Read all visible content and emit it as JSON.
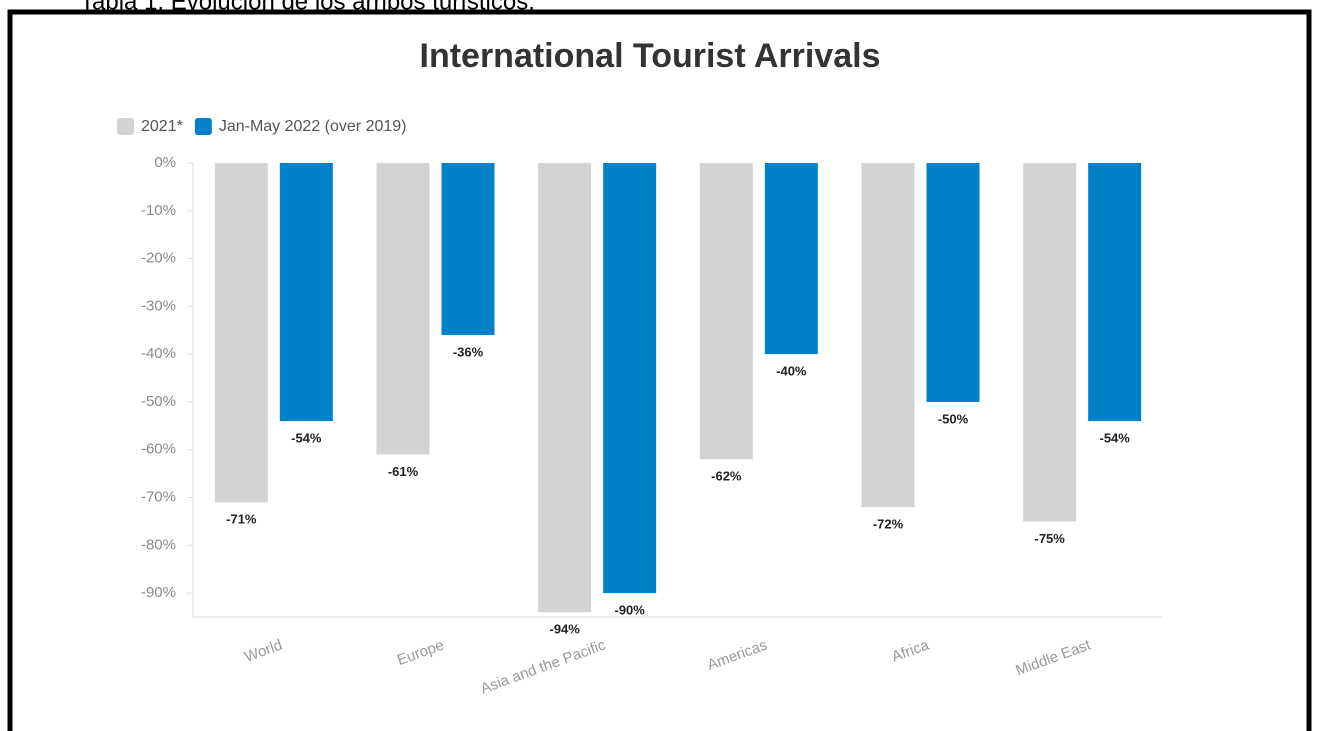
{
  "caption": "Tabla 1. Evolución de los arribos turísticos.",
  "chart_data": {
    "type": "bar",
    "title": "International Tourist Arrivals",
    "categories": [
      "World",
      "Europe",
      "Asia and the Pacific",
      "Americas",
      "Africa",
      "Middle East"
    ],
    "series": [
      {
        "name": "2021*",
        "color": "#d3d3d3",
        "values": [
          -71,
          -61,
          -94,
          -62,
          -72,
          -75
        ],
        "value_labels": [
          "-71%",
          "-61%",
          "-94%",
          "-62%",
          "-72%",
          "-75%"
        ]
      },
      {
        "name": "Jan-May 2022 (over 2019)",
        "color": "#0081c9",
        "values": [
          -54,
          -36,
          -90,
          -40,
          -50,
          -54
        ],
        "value_labels": [
          "-54%",
          "-36%",
          "-90%",
          "-40%",
          "-50%",
          "-54%"
        ]
      }
    ],
    "ylim": [
      -95,
      0
    ],
    "yticks": [
      {
        "value": 0,
        "label": "0%"
      },
      {
        "value": -10,
        "label": "-10%"
      },
      {
        "value": -20,
        "label": "-20%"
      },
      {
        "value": -30,
        "label": "-30%"
      },
      {
        "value": -40,
        "label": "-40%"
      },
      {
        "value": -50,
        "label": "-50%"
      },
      {
        "value": -60,
        "label": "-60%"
      },
      {
        "value": -70,
        "label": "-70%"
      },
      {
        "value": -80,
        "label": "-80%"
      },
      {
        "value": -90,
        "label": "-90%"
      }
    ],
    "legend": "top-left",
    "grid": false
  }
}
